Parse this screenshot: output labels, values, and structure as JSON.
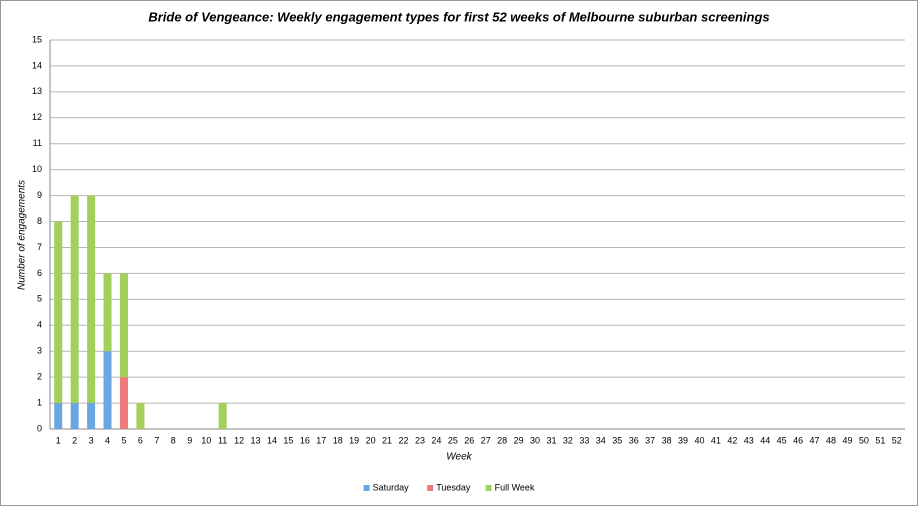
{
  "chart_data": {
    "type": "bar",
    "stacked": true,
    "title": "Bride of Vengeance: Weekly engagement types for first 52 weeks of Melbourne suburban screenings",
    "x_label": "Week",
    "y_label": "Number of engagements",
    "categories": [
      "1",
      "2",
      "3",
      "4",
      "5",
      "6",
      "7",
      "8",
      "9",
      "10",
      "11",
      "12",
      "13",
      "14",
      "15",
      "16",
      "17",
      "18",
      "19",
      "20",
      "21",
      "22",
      "23",
      "24",
      "25",
      "26",
      "27",
      "28",
      "29",
      "30",
      "31",
      "32",
      "33",
      "34",
      "35",
      "36",
      "37",
      "38",
      "39",
      "40",
      "41",
      "42",
      "43",
      "44",
      "45",
      "46",
      "47",
      "48",
      "49",
      "50",
      "51",
      "52"
    ],
    "series": [
      {
        "name": "Saturday",
        "color": "#6aa6e0",
        "values": [
          1,
          1,
          1,
          3,
          0,
          0,
          0,
          0,
          0,
          0,
          0,
          0,
          0,
          0,
          0,
          0,
          0,
          0,
          0,
          0,
          0,
          0,
          0,
          0,
          0,
          0,
          0,
          0,
          0,
          0,
          0,
          0,
          0,
          0,
          0,
          0,
          0,
          0,
          0,
          0,
          0,
          0,
          0,
          0,
          0,
          0,
          0,
          0,
          0,
          0,
          0,
          0
        ]
      },
      {
        "name": "Tuesday",
        "color": "#f07a7a",
        "values": [
          0,
          0,
          0,
          0,
          2,
          0,
          0,
          0,
          0,
          0,
          0,
          0,
          0,
          0,
          0,
          0,
          0,
          0,
          0,
          0,
          0,
          0,
          0,
          0,
          0,
          0,
          0,
          0,
          0,
          0,
          0,
          0,
          0,
          0,
          0,
          0,
          0,
          0,
          0,
          0,
          0,
          0,
          0,
          0,
          0,
          0,
          0,
          0,
          0,
          0,
          0,
          0
        ]
      },
      {
        "name": "Full Week",
        "color": "#a2d05a",
        "values": [
          7,
          8,
          8,
          3,
          4,
          1,
          0,
          0,
          0,
          0,
          1,
          0,
          0,
          0,
          0,
          0,
          0,
          0,
          0,
          0,
          0,
          0,
          0,
          0,
          0,
          0,
          0,
          0,
          0,
          0,
          0,
          0,
          0,
          0,
          0,
          0,
          0,
          0,
          0,
          0,
          0,
          0,
          0,
          0,
          0,
          0,
          0,
          0,
          0,
          0,
          0,
          0
        ]
      }
    ],
    "ylim": [
      0,
      15
    ],
    "yticks": [
      0,
      1,
      2,
      3,
      4,
      5,
      6,
      7,
      8,
      9,
      10,
      11,
      12,
      13,
      14,
      15
    ],
    "grid": true,
    "legend": "bottom"
  }
}
